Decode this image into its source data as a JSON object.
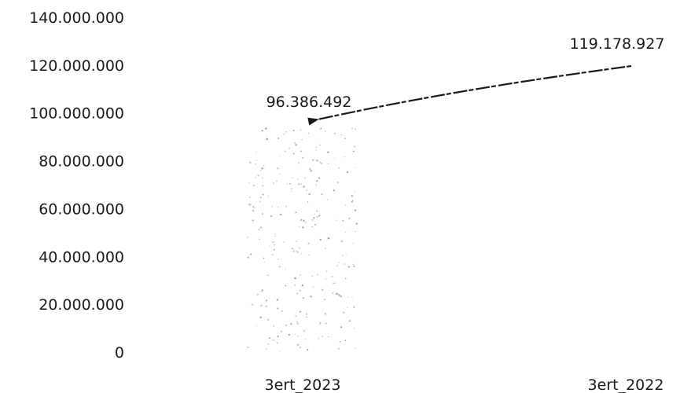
{
  "chart_data": {
    "type": "bar",
    "categories": [
      "3ert_2023",
      "3ert_2022"
    ],
    "values": [
      96386492,
      119178927
    ],
    "data_labels": [
      "96.386.492",
      "119.178.927"
    ],
    "ylim": [
      0,
      140000000
    ],
    "y_ticks": [
      0,
      20000000,
      40000000,
      60000000,
      80000000,
      100000000,
      120000000,
      140000000
    ],
    "y_tick_labels": [
      "0",
      "20.000.000",
      "40.000.000",
      "60.000.000",
      "80.000.000",
      "100.000.000",
      "120.000.000",
      "140.000.000"
    ],
    "grid": false,
    "legend": "none",
    "bar_style": "faint speckled fill (first bar only visible)",
    "annotation": "arrow from 119.178.927 label pointing to 96.386.492 bar"
  }
}
